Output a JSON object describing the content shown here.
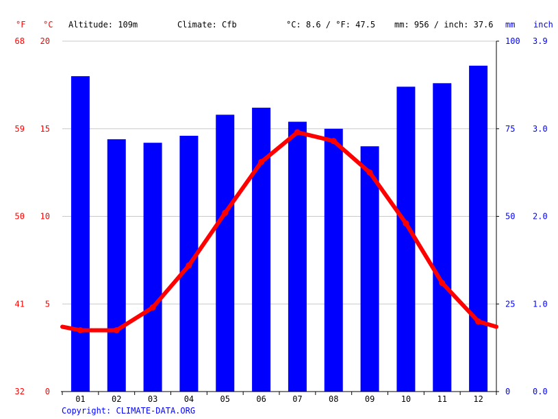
{
  "header": {
    "unit_f": "°F",
    "unit_c": "°C",
    "altitude": "Altitude: 109m",
    "climate": "Climate: Cfb",
    "temp_avg": "°C: 8.6 / °F: 47.5",
    "precip_total": "mm: 956 / inch: 37.6",
    "unit_mm": "mm",
    "unit_inch": "inch"
  },
  "footer": {
    "copyright": "Copyright: CLIMATE-DATA.ORG"
  },
  "colors": {
    "temperature": "#ff0000",
    "precipitation": "#0000ff",
    "grid": "#c8c8c8"
  },
  "chart_data": {
    "type": "bar+line",
    "categories": [
      "01",
      "02",
      "03",
      "04",
      "05",
      "06",
      "07",
      "08",
      "09",
      "10",
      "11",
      "12"
    ],
    "series": [
      {
        "kind": "bar",
        "axis": "precipitation_mm",
        "color": "#0000ff",
        "values": [
          90,
          72,
          71,
          73,
          79,
          81,
          77,
          75,
          70,
          87,
          88,
          93
        ]
      },
      {
        "kind": "line",
        "axis": "temperature_c",
        "color": "#ff0000",
        "values": [
          3.5,
          3.5,
          4.8,
          7.2,
          10.2,
          13.1,
          14.8,
          14.3,
          12.5,
          9.6,
          6.2,
          4.0
        ],
        "edge_left": 3.7,
        "edge_right": 3.7
      }
    ],
    "axes": {
      "celsius": {
        "range": [
          0,
          20
        ],
        "ticks": [
          "0",
          "5",
          "10",
          "15",
          "20"
        ]
      },
      "fahrenheit": {
        "ticks": [
          "32",
          "41",
          "50",
          "59",
          "68"
        ]
      },
      "mm": {
        "range": [
          0,
          100
        ],
        "ticks": [
          "0",
          "25",
          "50",
          "75",
          "100"
        ]
      },
      "inch": {
        "ticks": [
          "0.0",
          "1.0",
          "2.0",
          "3.0",
          "3.9"
        ]
      }
    },
    "grid": true
  }
}
